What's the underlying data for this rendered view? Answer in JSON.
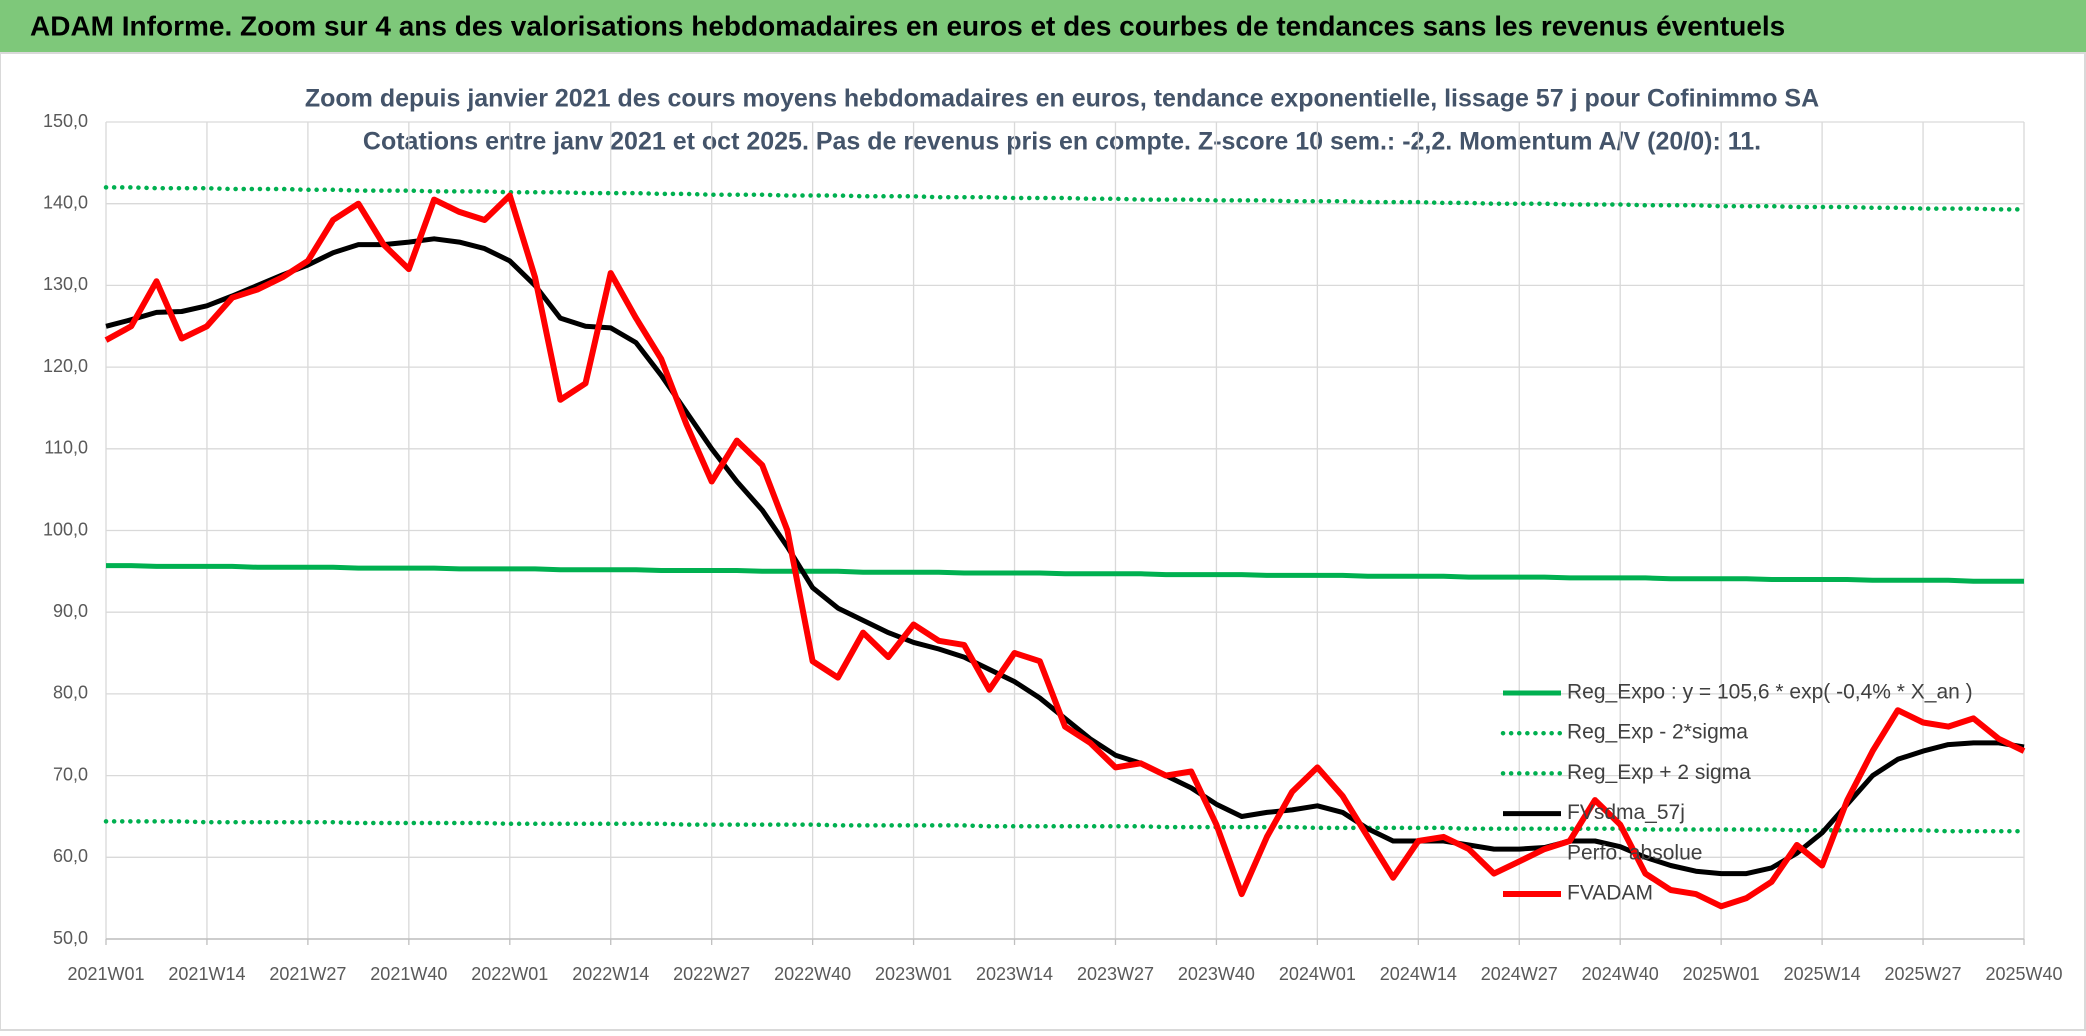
{
  "header": {
    "title": "ADAM Informe. Zoom sur 4 ans des valorisations hebdomadaires en euros et des courbes de tendances sans les revenus éventuels"
  },
  "chart_data": {
    "type": "line",
    "title": "Zoom depuis janvier 2021 des cours moyens hebdomadaires en euros, tendance exponentielle, lissage 57 j pour Cofinimmo SA",
    "subtitle": "Cotations entre janv 2021 et oct 2025. Pas de revenus pris en compte. Z-score 10 sem.: -2,2. Momentum A/V (20/0): 11.",
    "categories": [
      "2021W01",
      null,
      null,
      null,
      "2021W14",
      null,
      null,
      null,
      "2021W27",
      null,
      null,
      null,
      "2021W40",
      null,
      null,
      null,
      "2022W01",
      null,
      null,
      null,
      "2022W14",
      null,
      null,
      null,
      "2022W27",
      null,
      null,
      null,
      "2022W40",
      null,
      null,
      null,
      "2023W01",
      null,
      null,
      null,
      "2023W14",
      null,
      null,
      null,
      "2023W27",
      null,
      null,
      null,
      "2023W40",
      null,
      null,
      null,
      "2024W01",
      null,
      null,
      null,
      "2024W14",
      null,
      null,
      null,
      "2024W27",
      null,
      null,
      null,
      "2024W40",
      null,
      null,
      null,
      "2025W01",
      null,
      null,
      null,
      "2025W14",
      null,
      null,
      null,
      "2025W27",
      null,
      null,
      null,
      "2025W40"
    ],
    "ylim": [
      50,
      150
    ],
    "yticks": [
      {
        "value": 50,
        "label": "50,0"
      },
      {
        "value": 60,
        "label": "60,0"
      },
      {
        "value": 70,
        "label": "70,0"
      },
      {
        "value": 80,
        "label": "80,0"
      },
      {
        "value": 90,
        "label": "90,0"
      },
      {
        "value": 100,
        "label": "100,0"
      },
      {
        "value": 110,
        "label": "110,0"
      },
      {
        "value": 120,
        "label": "120,0"
      },
      {
        "value": 130,
        "label": "130,0"
      },
      {
        "value": 140,
        "label": "140,0"
      },
      {
        "value": 150,
        "label": "150,0"
      }
    ],
    "grid": true,
    "legend": "lower right",
    "series": [
      {
        "name": "Reg_Expo : y = 105,6 * exp( -0,4% *  X_an )",
        "color": "#00b050",
        "style": "solid",
        "values": [
          95.7,
          95.7,
          95.6,
          95.6,
          95.6,
          95.6,
          95.5,
          95.5,
          95.5,
          95.5,
          95.4,
          95.4,
          95.4,
          95.4,
          95.3,
          95.3,
          95.3,
          95.3,
          95.2,
          95.2,
          95.2,
          95.2,
          95.1,
          95.1,
          95.1,
          95.1,
          95.0,
          95.0,
          95.0,
          95.0,
          94.9,
          94.9,
          94.9,
          94.9,
          94.8,
          94.8,
          94.8,
          94.8,
          94.7,
          94.7,
          94.7,
          94.7,
          94.6,
          94.6,
          94.6,
          94.6,
          94.5,
          94.5,
          94.5,
          94.5,
          94.4,
          94.4,
          94.4,
          94.4,
          94.3,
          94.3,
          94.3,
          94.3,
          94.2,
          94.2,
          94.2,
          94.2,
          94.1,
          94.1,
          94.1,
          94.1,
          94.0,
          94.0,
          94.0,
          94.0,
          93.9,
          93.9,
          93.9,
          93.9,
          93.8,
          93.8,
          93.8
        ]
      },
      {
        "name": "Reg_Exp - 2*sigma",
        "color": "#00b050",
        "style": "dotted",
        "values": [
          64.4,
          64.4,
          64.4,
          64.4,
          64.3,
          64.3,
          64.3,
          64.3,
          64.3,
          64.3,
          64.2,
          64.2,
          64.2,
          64.2,
          64.2,
          64.2,
          64.1,
          64.1,
          64.1,
          64.1,
          64.1,
          64.1,
          64.1,
          64.0,
          64.0,
          64.0,
          64.0,
          64.0,
          64.0,
          63.9,
          63.9,
          63.9,
          63.9,
          63.9,
          63.9,
          63.8,
          63.8,
          63.8,
          63.8,
          63.8,
          63.8,
          63.8,
          63.7,
          63.7,
          63.7,
          63.7,
          63.7,
          63.7,
          63.6,
          63.6,
          63.6,
          63.6,
          63.6,
          63.6,
          63.5,
          63.5,
          63.5,
          63.5,
          63.5,
          63.5,
          63.5,
          63.4,
          63.4,
          63.4,
          63.4,
          63.4,
          63.4,
          63.3,
          63.3,
          63.3,
          63.3,
          63.3,
          63.3,
          63.2,
          63.2,
          63.2,
          63.2
        ]
      },
      {
        "name": "Reg_Exp + 2 sigma",
        "color": "#00b050",
        "style": "dotted",
        "values": [
          142.0,
          142.0,
          141.9,
          141.9,
          141.9,
          141.8,
          141.8,
          141.8,
          141.7,
          141.7,
          141.6,
          141.6,
          141.6,
          141.5,
          141.5,
          141.5,
          141.4,
          141.4,
          141.4,
          141.3,
          141.3,
          141.3,
          141.2,
          141.2,
          141.1,
          141.1,
          141.1,
          141.0,
          141.0,
          141.0,
          140.9,
          140.9,
          140.9,
          140.8,
          140.8,
          140.8,
          140.7,
          140.7,
          140.7,
          140.6,
          140.6,
          140.5,
          140.5,
          140.5,
          140.4,
          140.4,
          140.4,
          140.3,
          140.3,
          140.3,
          140.2,
          140.2,
          140.2,
          140.1,
          140.1,
          140.0,
          140.0,
          140.0,
          139.9,
          139.9,
          139.9,
          139.8,
          139.8,
          139.8,
          139.7,
          139.7,
          139.7,
          139.6,
          139.6,
          139.6,
          139.5,
          139.5,
          139.4,
          139.4,
          139.4,
          139.3,
          139.3
        ]
      },
      {
        "name": "FVsdma_57j",
        "color": "#000000",
        "style": "solid",
        "values": [
          125,
          125.8,
          126.7,
          126.8,
          127.5,
          128.7,
          130,
          131.3,
          132.5,
          134,
          135,
          135,
          135.3,
          135.7,
          135.3,
          134.5,
          133,
          130,
          126,
          125,
          124.8,
          123,
          119,
          114.5,
          110,
          106,
          102.5,
          98,
          93,
          90.5,
          89,
          87.5,
          86.3,
          85.5,
          84.5,
          83,
          81.5,
          79.5,
          77,
          74.5,
          72.5,
          71.5,
          70,
          68.5,
          66.5,
          65,
          65.5,
          65.8,
          66.3,
          65.5,
          63.5,
          62,
          62,
          62,
          61.5,
          61,
          61,
          61.2,
          62,
          62,
          61.3,
          60,
          59,
          58.3,
          58,
          58,
          58.7,
          60.5,
          63,
          66.5,
          70,
          72,
          73,
          73.8,
          74,
          74,
          73.5
        ]
      },
      {
        "name": "Perfo. absolue",
        "color": null,
        "style": "none",
        "values": [
          null,
          null,
          null,
          null,
          null,
          null,
          null,
          null,
          null,
          null,
          null,
          null,
          null,
          null,
          null,
          null,
          null,
          null,
          null,
          null,
          null,
          null,
          null,
          null,
          null,
          null,
          null,
          null,
          null,
          null,
          null,
          null,
          null,
          null,
          null,
          null,
          null,
          null,
          null,
          null,
          null,
          null,
          null,
          null,
          null,
          null,
          null,
          null,
          null,
          null,
          null,
          null,
          null,
          null,
          null,
          null,
          null,
          null,
          null,
          null,
          null,
          null,
          null,
          null,
          null,
          null,
          null,
          null,
          null,
          null,
          null,
          null,
          null,
          null,
          null,
          null,
          null
        ]
      },
      {
        "name": "FVADAM",
        "color": "#ff0000",
        "style": "solid",
        "values": [
          123.3,
          125,
          130.5,
          123.5,
          125,
          128.5,
          129.5,
          131,
          133,
          138,
          140,
          135,
          132,
          140.5,
          139,
          138,
          141,
          131,
          116,
          118,
          131.5,
          126,
          121,
          113,
          106,
          111,
          108,
          100,
          84,
          82,
          87.5,
          84.5,
          88.5,
          86.5,
          86,
          80.5,
          85,
          84,
          76,
          74,
          71,
          71.5,
          70,
          70.5,
          64,
          55.5,
          62.5,
          68,
          71,
          67.5,
          62.5,
          57.5,
          62,
          62.5,
          61,
          58,
          59.5,
          61,
          62,
          67,
          64,
          58,
          56,
          55.5,
          54,
          55,
          57,
          61.5,
          59,
          67,
          73,
          78,
          76.5,
          76,
          77,
          74.5,
          73
        ]
      }
    ]
  }
}
